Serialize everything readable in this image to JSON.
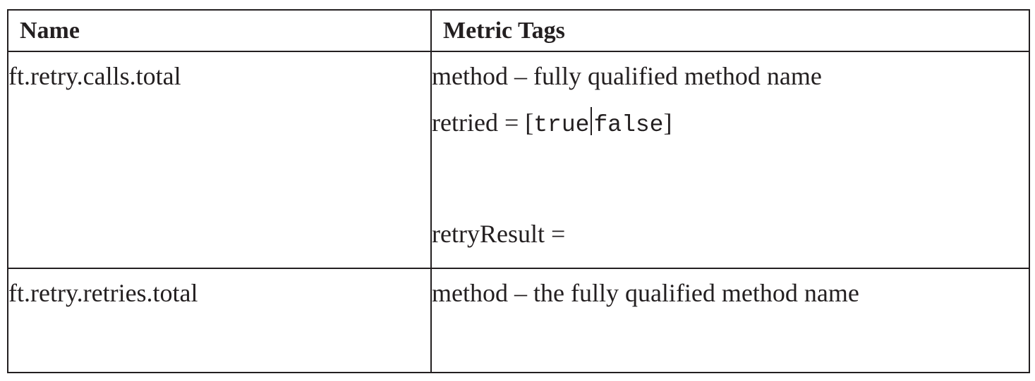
{
  "table": {
    "headers": {
      "name": "Name",
      "tags": "Metric Tags"
    },
    "rows": [
      {
        "name": "ft.retry.calls.total",
        "tags": {
          "method": "method – fully qualified method name",
          "retried_prefix": "retried = ",
          "retried_open": "[",
          "retried_true": "true",
          "retried_false": "false",
          "retried_close": "]",
          "retry_result": "retryResult ="
        }
      },
      {
        "name": "ft.retry.retries.total",
        "tags": {
          "method": "method – the fully qualified method name"
        }
      }
    ]
  }
}
